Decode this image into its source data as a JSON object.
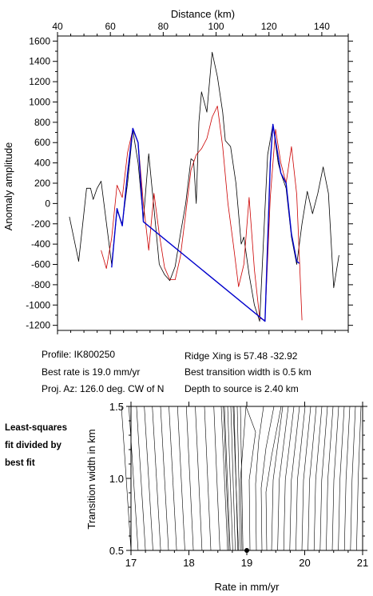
{
  "chart_data": [
    {
      "type": "line",
      "xlabel": "Distance (km)",
      "ylabel": "Anomaly amplitude",
      "xlim": [
        40,
        150
      ],
      "ylim": [
        -1250,
        1650
      ],
      "xticks": [
        40,
        60,
        80,
        100,
        120,
        140
      ],
      "yticks": [
        -1200,
        -1000,
        -800,
        -600,
        -400,
        -200,
        0,
        200,
        400,
        600,
        800,
        1000,
        1200,
        1400,
        1600
      ],
      "grid": false,
      "series": [
        {
          "color": "#000000",
          "x": [
            44.5,
            48,
            51,
            52.5,
            53.5,
            55,
            56.5,
            60.5,
            62.5,
            64.5,
            66.5,
            68.5,
            70.5,
            72.5,
            74.5,
            76.5,
            78.5,
            80.5,
            82.5,
            84.5,
            86.5,
            88.5,
            90.5,
            91.5,
            92.5,
            93.5,
            94.5,
            95.5,
            96.5,
            98.5,
            100.5,
            102.5,
            103.5,
            105.5,
            107.5,
            109.5,
            110.5,
            112.5,
            114.5,
            116.5,
            118.5,
            119.5,
            121.5,
            123.5,
            124.5,
            126.5,
            128.5,
            130.5,
            132.5,
            134.5,
            136.5,
            138.5,
            140.5,
            142.5,
            144.5,
            146.5
          ],
          "y": [
            -130,
            -570,
            150,
            150,
            40,
            150,
            220,
            -600,
            -70,
            -200,
            200,
            720,
            400,
            -160,
            490,
            -50,
            -600,
            -700,
            -760,
            -620,
            -300,
            0,
            440,
            420,
            0,
            800,
            1100,
            1000,
            900,
            1490,
            1250,
            900,
            620,
            560,
            200,
            -400,
            -330,
            -700,
            -1000,
            -1160,
            -50,
            480,
            780,
            400,
            300,
            150,
            -330,
            -600,
            -200,
            120,
            -100,
            100,
            360,
            100,
            -830,
            -510
          ]
        },
        {
          "color": "#cc0000",
          "x": [
            56.5,
            58.5,
            60.5,
            62.5,
            64.5,
            66.5,
            68.5,
            70.5,
            72.5,
            74.5,
            76.5,
            78.5,
            80.5,
            82.5,
            84.5,
            86.5,
            88.5,
            90.5,
            92.5,
            94.5,
            96.5,
            98.5,
            100.5,
            102.5,
            104.5,
            106.5,
            108.5,
            110.5,
            112.5,
            114.5,
            116.5,
            118.5,
            120.5,
            122.5,
            124.5,
            126.5,
            128.5,
            130.5,
            132.5
          ],
          "y": [
            -460,
            -640,
            -340,
            180,
            60,
            500,
            730,
            600,
            0,
            -460,
            100,
            -300,
            -630,
            -750,
            -750,
            -520,
            -100,
            330,
            480,
            540,
            640,
            850,
            960,
            560,
            0,
            -400,
            -820,
            -600,
            60,
            -650,
            -1130,
            -1150,
            60,
            730,
            400,
            200,
            560,
            90,
            -1150
          ]
        },
        {
          "color": "#0000cc",
          "x": [
            60.5,
            62.5,
            64.5,
            66.5,
            68.5,
            70.5,
            72.5,
            118.5,
            120.5,
            121.5,
            122.5,
            124.5,
            126.5,
            128.5,
            130.5,
            131.5
          ],
          "y": [
            -630,
            -50,
            -220,
            300,
            740,
            600,
            -180,
            -1160,
            400,
            780,
            620,
            300,
            200,
            -300,
            -570,
            -590
          ]
        }
      ]
    },
    {
      "type": "contour",
      "xlabel": "Rate in mm/yr",
      "ylabel": "Transition width in km",
      "xlim": [
        17,
        21
      ],
      "ylim": [
        0.5,
        1.5
      ],
      "xticks": [
        17,
        18,
        19,
        20,
        21
      ],
      "yticks": [
        0.5,
        1.0,
        1.5
      ],
      "best_fit": {
        "x": 19.0,
        "y": 0.5
      }
    }
  ],
  "axes": {
    "top": {
      "xlabel": "Distance (km)",
      "ylabel": "Anomaly amplitude",
      "xtick_labels": [
        "40",
        "60",
        "80",
        "100",
        "120",
        "140"
      ],
      "ytick_labels": [
        "-1200",
        "-1000",
        "-800",
        "-600",
        "-400",
        "-200",
        "0",
        "200",
        "400",
        "600",
        "800",
        "1000",
        "1200",
        "1400",
        "1600"
      ]
    },
    "bottom": {
      "xlabel": "Rate in mm/yr",
      "ylabel": "Transition width in km",
      "xtick_labels": [
        "17",
        "18",
        "19",
        "20",
        "21"
      ],
      "ytick_labels": [
        "0.5",
        "1.0",
        "1.5"
      ]
    }
  },
  "info": {
    "profile": "Profile: IK800250",
    "best_rate": "Best rate is 19.0 mm/yr",
    "proj_az": "Proj. Az: 126.0 deg. CW of N",
    "ridge_xing": "Ridge Xing is 57.48 -32.92",
    "best_transition": "Best transition width is 0.5 km",
    "depth": "Depth to source is   2.40 km"
  },
  "side_label": [
    "Least-squares",
    "fit divided by",
    "best fit"
  ]
}
